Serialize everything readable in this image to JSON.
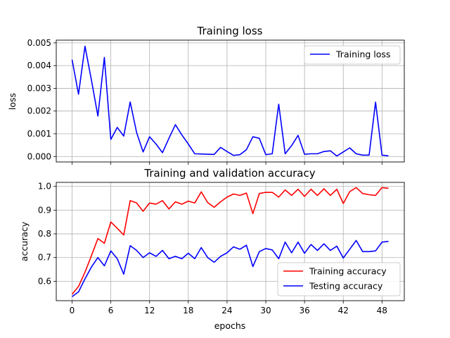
{
  "chart_data": [
    {
      "type": "line",
      "title": "Training loss",
      "xlabel": "",
      "ylabel": "loss",
      "xlim": [
        -2.45,
        51.45
      ],
      "ylim": [
        -0.00024,
        0.00512
      ],
      "xticks": [
        0,
        6,
        12,
        18,
        24,
        30,
        36,
        42,
        48
      ],
      "xtick_labels": [],
      "yticks": [
        0.0,
        0.001,
        0.002,
        0.003,
        0.004,
        0.005
      ],
      "ytick_labels": [
        "0.000",
        "0.001",
        "0.002",
        "0.003",
        "0.004",
        "0.005"
      ],
      "grid": true,
      "legend_position": "upper right",
      "x": [
        0,
        1,
        2,
        3,
        4,
        5,
        6,
        7,
        8,
        9,
        10,
        11,
        12,
        13,
        14,
        15,
        16,
        17,
        18,
        19,
        20,
        21,
        22,
        23,
        24,
        25,
        26,
        27,
        28,
        29,
        30,
        31,
        32,
        33,
        34,
        35,
        36,
        37,
        38,
        39,
        40,
        41,
        42,
        43,
        44,
        45,
        46,
        47,
        48,
        49
      ],
      "series": [
        {
          "name": "Training loss",
          "color": "#0000ff",
          "values": [
            0.00426,
            0.00274,
            0.00485,
            0.00336,
            0.00178,
            0.00436,
            0.00075,
            0.00128,
            0.0009,
            0.0024,
            0.00105,
            0.0002,
            0.00087,
            0.00055,
            0.00017,
            0.0008,
            0.0014,
            0.00095,
            0.00055,
            0.00012,
            0.00011,
            0.0001,
            9e-05,
            0.0004,
            0.00022,
            5e-05,
            8e-05,
            0.0003,
            0.00087,
            0.0008,
            8e-05,
            0.00012,
            0.0023,
            0.00012,
            0.00048,
            0.00093,
            0.0001,
            0.00012,
            0.00012,
            0.00022,
            0.00025,
            2e-05,
            0.0002,
            0.00038,
            0.00012,
            6e-05,
            6e-05,
            0.00239,
            6e-05,
            3e-05
          ]
        }
      ]
    },
    {
      "type": "line",
      "title": "Training and validation accuracy",
      "xlabel": "epochs",
      "ylabel": "accuracy",
      "xlim": [
        -2.45,
        51.45
      ],
      "ylim": [
        0.518,
        1.017
      ],
      "xticks": [
        0,
        6,
        12,
        18,
        24,
        30,
        36,
        42,
        48
      ],
      "xtick_labels": [
        "0",
        "6",
        "12",
        "18",
        "24",
        "30",
        "36",
        "42",
        "48"
      ],
      "yticks": [
        0.6,
        0.7,
        0.8,
        0.9,
        1.0
      ],
      "ytick_labels": [
        "0.6",
        "0.7",
        "0.8",
        "0.9",
        "1.0"
      ],
      "grid": true,
      "legend_position": "lower right",
      "x": [
        0,
        1,
        2,
        3,
        4,
        5,
        6,
        7,
        8,
        9,
        10,
        11,
        12,
        13,
        14,
        15,
        16,
        17,
        18,
        19,
        20,
        21,
        22,
        23,
        24,
        25,
        26,
        27,
        28,
        29,
        30,
        31,
        32,
        33,
        34,
        35,
        36,
        37,
        38,
        39,
        40,
        41,
        42,
        43,
        44,
        45,
        46,
        47,
        48,
        49
      ],
      "series": [
        {
          "name": "Training accuracy",
          "color": "#ff0000",
          "values": [
            0.545,
            0.578,
            0.638,
            0.708,
            0.78,
            0.76,
            0.85,
            0.823,
            0.795,
            0.94,
            0.93,
            0.895,
            0.93,
            0.925,
            0.94,
            0.905,
            0.935,
            0.925,
            0.938,
            0.93,
            0.977,
            0.932,
            0.912,
            0.935,
            0.955,
            0.968,
            0.962,
            0.972,
            0.885,
            0.97,
            0.975,
            0.975,
            0.955,
            0.985,
            0.962,
            0.988,
            0.958,
            0.988,
            0.962,
            0.99,
            0.962,
            0.988,
            0.928,
            0.978,
            0.995,
            0.97,
            0.965,
            0.962,
            0.995,
            0.992
          ]
        },
        {
          "name": "Testing accuracy",
          "color": "#0000ff",
          "values": [
            0.535,
            0.555,
            0.61,
            0.66,
            0.7,
            0.665,
            0.728,
            0.695,
            0.63,
            0.75,
            0.73,
            0.7,
            0.72,
            0.705,
            0.73,
            0.695,
            0.705,
            0.695,
            0.718,
            0.695,
            0.742,
            0.7,
            0.68,
            0.705,
            0.72,
            0.745,
            0.735,
            0.752,
            0.662,
            0.725,
            0.738,
            0.732,
            0.695,
            0.765,
            0.72,
            0.765,
            0.718,
            0.755,
            0.73,
            0.758,
            0.73,
            0.748,
            0.698,
            0.735,
            0.772,
            0.725,
            0.725,
            0.728,
            0.765,
            0.768
          ]
        }
      ]
    }
  ]
}
